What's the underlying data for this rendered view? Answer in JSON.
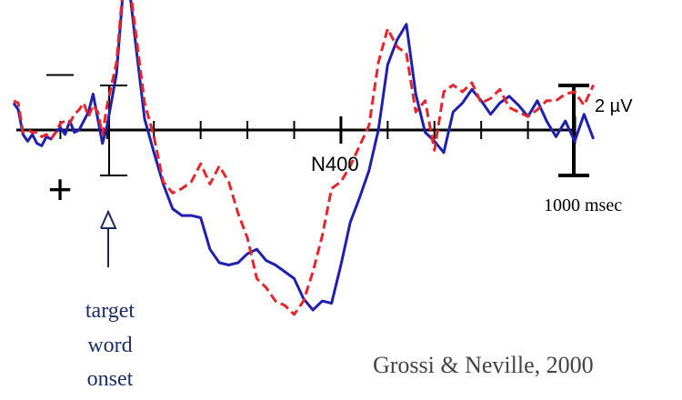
{
  "chart_data": {
    "type": "line",
    "title": "",
    "xlabel": "",
    "ylabel": "",
    "x_unit": "msec",
    "y_unit": "µV",
    "y_orientation": "negative up",
    "xlim": [
      -200,
      1000
    ],
    "ylim": [
      -5.3,
      8.3
    ],
    "x_tick_step": 100,
    "grid": false,
    "legend": "none",
    "polarity_markers": {
      "negative": "—",
      "positive": "+"
    },
    "scale_bar": {
      "amplitude_label": "2 µV",
      "amplitude_value": 4,
      "time_label": "1000 msec"
    },
    "annotations": {
      "component": "N400",
      "onset": "target word onset",
      "onset_lines": [
        "target",
        "word",
        "onset"
      ],
      "citation": "Grossi & Neville, 2000"
    },
    "series": [
      {
        "name": "solid",
        "color": "#1f1fb0",
        "style": "solid",
        "x": [
          -200,
          -190,
          -180,
          -170,
          -160,
          -150,
          -140,
          -130,
          -120,
          -110,
          -100,
          -90,
          -80,
          -70,
          -60,
          -50,
          -40,
          -30,
          -20,
          -10,
          0,
          20,
          40,
          60,
          80,
          100,
          120,
          140,
          160,
          180,
          200,
          220,
          240,
          260,
          280,
          300,
          320,
          340,
          360,
          380,
          400,
          420,
          440,
          460,
          480,
          500,
          520,
          540,
          560,
          580,
          600,
          620,
          640,
          660,
          680,
          700,
          720,
          740,
          760,
          780,
          800,
          820,
          840,
          860,
          880,
          900,
          920,
          940,
          960,
          980,
          1000,
          1020,
          1040
        ],
        "y": [
          -1.2,
          -0.9,
          0.2,
          0.5,
          0.2,
          0.6,
          0.7,
          0.3,
          0.4,
          0.1,
          -0.1,
          0.2,
          -0.4,
          0.1,
          0.0,
          -0.4,
          -0.8,
          -1.6,
          -0.5,
          0.6,
          -0.2,
          -2.5,
          -7.7,
          -4.0,
          -0.5,
          1.0,
          2.4,
          3.5,
          3.8,
          3.8,
          3.9,
          5.3,
          5.9,
          6.0,
          5.9,
          5.5,
          5.3,
          5.8,
          6.0,
          6.3,
          6.6,
          7.5,
          8.0,
          7.6,
          7.7,
          6.0,
          4.1,
          3.0,
          1.8,
          0.0,
          -2.9,
          -4.0,
          -4.7,
          -1.6,
          0.1,
          0.5,
          1.0,
          -0.8,
          -1.2,
          -1.8,
          -1.3,
          -0.7,
          -1.2,
          -1.5,
          -1.1,
          -0.6,
          -1.3,
          -0.4,
          0.3,
          -0.4,
          0.5,
          -0.7,
          0.4
        ]
      },
      {
        "name": "dashed",
        "color": "#e8252c",
        "style": "dashed",
        "x": [
          -200,
          -190,
          -180,
          -170,
          -160,
          -150,
          -140,
          -130,
          -120,
          -110,
          -100,
          -90,
          -80,
          -70,
          -60,
          -50,
          -40,
          -30,
          -20,
          -10,
          0,
          20,
          40,
          60,
          80,
          100,
          120,
          140,
          160,
          180,
          200,
          220,
          240,
          260,
          280,
          300,
          320,
          340,
          360,
          380,
          400,
          420,
          440,
          460,
          480,
          500,
          520,
          540,
          560,
          580,
          600,
          620,
          640,
          660,
          680,
          700,
          720,
          740,
          760,
          780,
          800,
          820,
          840,
          860,
          880,
          900,
          920,
          940,
          960,
          980,
          1000,
          1020,
          1040
        ],
        "y": [
          -1.3,
          -1.2,
          0.1,
          0.0,
          0.1,
          0.1,
          0.3,
          0.2,
          0.4,
          0.1,
          -0.3,
          -0.4,
          -0.3,
          -0.7,
          -0.9,
          -1.2,
          -0.6,
          -1.1,
          -0.8,
          0.2,
          -1.1,
          -3.0,
          -7.8,
          -4.5,
          -1.2,
          0.3,
          2.3,
          2.8,
          2.6,
          2.3,
          1.5,
          2.4,
          1.6,
          2.3,
          3.7,
          4.8,
          6.6,
          7.0,
          7.6,
          7.8,
          8.2,
          7.6,
          6.3,
          4.7,
          2.6,
          2.3,
          1.6,
          0.7,
          -0.2,
          -3.0,
          -4.5,
          -3.7,
          -3.4,
          -0.8,
          -1.3,
          0.9,
          -1.7,
          -2.0,
          -1.7,
          -2.1,
          -1.2,
          -1.4,
          -1.8,
          -1.0,
          -0.8,
          -0.6,
          -0.9,
          -1.3,
          -1.3,
          -1.6,
          -1.7,
          -1.1,
          -2.0
        ]
      }
    ]
  }
}
